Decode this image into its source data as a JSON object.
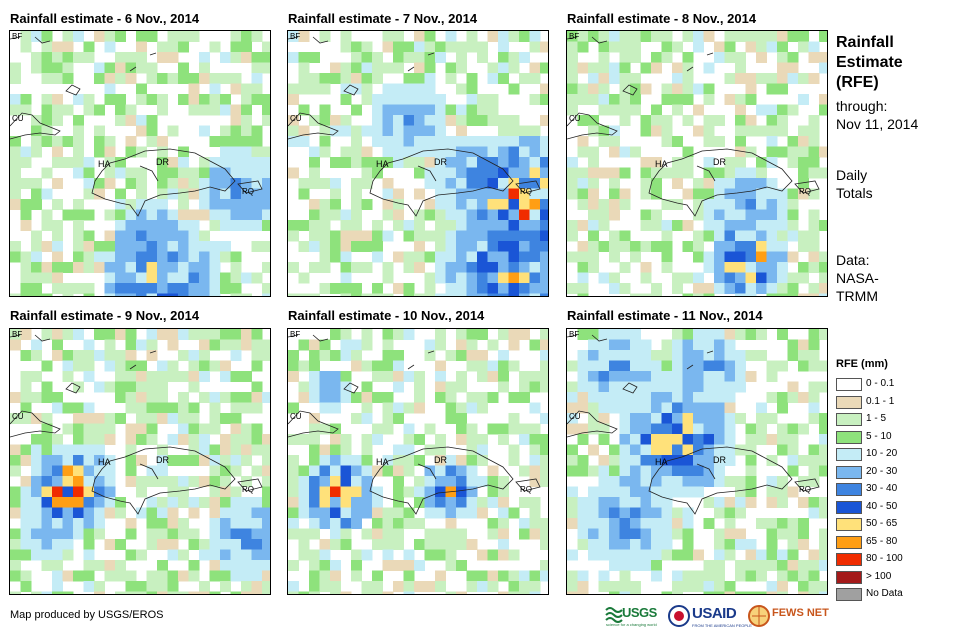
{
  "panels": [
    {
      "title": "Rainfall estimate - 6 Nov., 2014",
      "seed": 6
    },
    {
      "title": "Rainfall estimate - 7 Nov., 2014",
      "seed": 7
    },
    {
      "title": "Rainfall estimate - 8 Nov., 2014",
      "seed": 8
    },
    {
      "title": "Rainfall estimate - 9 Nov., 2014",
      "seed": 9
    },
    {
      "title": "Rainfall estimate - 10 Nov., 2014",
      "seed": 10
    },
    {
      "title": "Rainfall estimate - 11 Nov., 2014",
      "seed": 11
    }
  ],
  "map_labels": {
    "bf": "BF",
    "cu": "CU",
    "ha": "HA",
    "dr": "DR",
    "rq": "RQ"
  },
  "side": {
    "title_line1": "Rainfall",
    "title_line2": "Estimate",
    "title_line3": "(RFE)",
    "through": "through:",
    "date": "Nov 11, 2014",
    "daily": "Daily",
    "totals": "Totals",
    "data": "Data:",
    "nasa": "NASA-",
    "trmm": "TRMM"
  },
  "legend": {
    "title": "RFE (mm)",
    "items": [
      {
        "label": "0 - 0.1",
        "color": "#ffffff"
      },
      {
        "label": "0.1 - 1",
        "color": "#ead9b8"
      },
      {
        "label": "1 - 5",
        "color": "#c8f0c0"
      },
      {
        "label": "5 - 10",
        "color": "#8ee27c"
      },
      {
        "label": "10 - 20",
        "color": "#c4ecf6"
      },
      {
        "label": "20 - 30",
        "color": "#7ab7ef"
      },
      {
        "label": "30 - 40",
        "color": "#3e84e0"
      },
      {
        "label": "40 - 50",
        "color": "#1a55d6"
      },
      {
        "label": "50 - 65",
        "color": "#ffe17a"
      },
      {
        "label": "65 - 80",
        "color": "#ff9e14"
      },
      {
        "label": "80 - 100",
        "color": "#f02c00"
      },
      {
        "label": "> 100",
        "color": "#a41a1a"
      },
      {
        "label": "No Data",
        "color": "#a0a0a0"
      }
    ]
  },
  "credit": "Map produced by USGS/EROS",
  "logos": {
    "usgs": "USGS",
    "usgs_tag": "science for a changing world",
    "usaid": "USAID",
    "usaid_tag": "FROM THE AMERICAN PEOPLE",
    "fews": "FEWS NET"
  }
}
